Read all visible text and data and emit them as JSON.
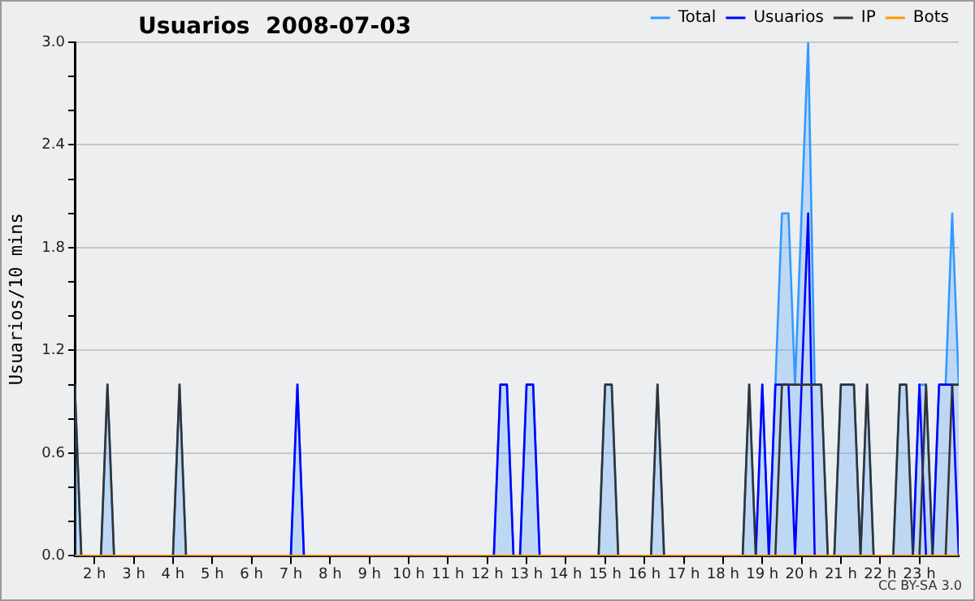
{
  "chart_data": {
    "type": "area",
    "title": "Usuarios  2008-07-03",
    "ylabel": "Usuarios/10 mins",
    "annotations": [
      "CC BY-SA 3.0"
    ],
    "xlim": [
      1.5,
      24
    ],
    "xticks": [
      {
        "value": 2,
        "label": "2 h"
      },
      {
        "value": 3,
        "label": "3 h"
      },
      {
        "value": 4,
        "label": "4 h"
      },
      {
        "value": 5,
        "label": "5 h"
      },
      {
        "value": 6,
        "label": "6 h"
      },
      {
        "value": 7,
        "label": "7 h"
      },
      {
        "value": 8,
        "label": "8 h"
      },
      {
        "value": 9,
        "label": "9 h"
      },
      {
        "value": 10,
        "label": "10 h"
      },
      {
        "value": 11,
        "label": "11 h"
      },
      {
        "value": 12,
        "label": "12 h"
      },
      {
        "value": 13,
        "label": "13 h"
      },
      {
        "value": 14,
        "label": "14 h"
      },
      {
        "value": 15,
        "label": "15 h"
      },
      {
        "value": 16,
        "label": "16 h"
      },
      {
        "value": 17,
        "label": "17 h"
      },
      {
        "value": 18,
        "label": "18 h"
      },
      {
        "value": 19,
        "label": "19 h"
      },
      {
        "value": 20,
        "label": "20 h"
      },
      {
        "value": 21,
        "label": "21 h"
      },
      {
        "value": 22,
        "label": "22 h"
      },
      {
        "value": 23,
        "label": "23 h"
      }
    ],
    "ylim": [
      0,
      3
    ],
    "yticks": [
      {
        "value": 0,
        "label": "0.0"
      },
      {
        "value": 0.2,
        "label": null
      },
      {
        "value": 0.4,
        "label": null
      },
      0.6,
      {
        "value": 0.8,
        "label": null
      },
      {
        "value": 1,
        "label": null
      },
      1.2,
      {
        "value": 1.4,
        "label": null
      },
      {
        "value": 1.6,
        "label": null
      },
      1.8,
      {
        "value": 2,
        "label": null
      },
      {
        "value": 2.2,
        "label": null
      },
      2.4,
      {
        "value": 2.6,
        "label": null
      },
      {
        "value": 2.8,
        "label": null
      },
      {
        "value": 3,
        "label": "3.0"
      }
    ],
    "grid": "y",
    "legend": "top right",
    "marker": "none",
    "line_style": "solid",
    "series": [
      {
        "name": "Total",
        "color": "#3399ff",
        "x": [
          1.5,
          1.667,
          2.167,
          2.333,
          2.5,
          4,
          4.167,
          4.333,
          7,
          7.167,
          7.333,
          12.167,
          12.333,
          12.5,
          12.667,
          12.833,
          13,
          13.167,
          13.333,
          14.833,
          15,
          15.167,
          15.333,
          16.167,
          16.333,
          16.5,
          18.5,
          18.667,
          18.833,
          19,
          19.167,
          19.333,
          19.5,
          19.667,
          19.833,
          20,
          20.167,
          20.333,
          20.5,
          20.667,
          20.833,
          21,
          21.333,
          21.5,
          21.667,
          21.833,
          22.333,
          22.5,
          22.667,
          22.833,
          23,
          23.167,
          23.333,
          23.5,
          23.667,
          23.833,
          24
        ],
        "values": [
          1,
          0,
          0,
          1,
          0,
          0,
          1,
          0,
          0,
          1,
          0,
          0,
          1,
          1,
          0,
          0,
          1,
          1,
          0,
          0,
          1,
          1,
          0,
          0,
          1,
          0,
          0,
          1,
          0,
          1,
          0,
          1,
          2,
          2,
          1,
          2,
          3,
          1,
          1,
          0,
          0,
          1,
          1,
          0,
          1,
          0,
          0,
          1,
          1,
          0,
          1,
          1,
          0,
          1,
          1,
          2,
          1
        ]
      },
      {
        "name": "Usuarios",
        "type": "line",
        "color": "#0000ff",
        "x": [
          1.5,
          7,
          7.167,
          7.333,
          12.167,
          12.333,
          12.5,
          12.667,
          12.833,
          13,
          13.167,
          13.333,
          18.833,
          19,
          19.167,
          19.333,
          19.5,
          19.667,
          19.833,
          20,
          20.167,
          20.333,
          22.833,
          23,
          23.167,
          23.333,
          23.5,
          23.667,
          23.833,
          24
        ],
        "values": [
          0,
          0,
          1,
          0,
          0,
          1,
          1,
          0,
          0,
          1,
          1,
          0,
          0,
          1,
          0,
          1,
          1,
          1,
          0,
          1,
          2,
          0,
          0,
          1,
          0,
          0,
          1,
          1,
          1,
          0
        ]
      },
      {
        "name": "IP",
        "type": "line",
        "color": "#333333",
        "x": [
          1.5,
          1.667,
          2.167,
          2.333,
          2.5,
          4,
          4.167,
          4.333,
          14.833,
          15,
          15.167,
          15.333,
          16.167,
          16.333,
          16.5,
          18.5,
          18.667,
          18.833,
          19.333,
          19.5,
          20.5,
          20.667,
          20.833,
          21,
          21.333,
          21.5,
          21.667,
          21.833,
          22.333,
          22.5,
          22.667,
          22.833,
          23,
          23.167,
          23.333,
          23.667,
          23.833,
          24
        ],
        "values": [
          1,
          0,
          0,
          1,
          0,
          0,
          1,
          0,
          0,
          1,
          1,
          0,
          0,
          1,
          0,
          0,
          1,
          0,
          0,
          1,
          1,
          0,
          0,
          1,
          1,
          0,
          1,
          0,
          0,
          1,
          1,
          0,
          0,
          1,
          0,
          0,
          1,
          1
        ]
      },
      {
        "name": "Bots",
        "type": "line",
        "color": "#ff9900",
        "x": [
          1.5,
          24
        ],
        "values": [
          0,
          0
        ]
      }
    ]
  }
}
